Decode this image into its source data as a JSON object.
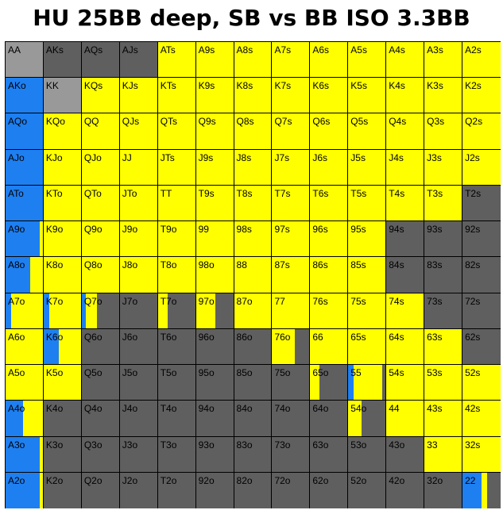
{
  "title": "HU 25BB deep, SB vs BB ISO 3.3BB",
  "colors": {
    "raise": "#ffff00",
    "jam": "#1e7ff0",
    "fold": "#5f5f5f",
    "pair_limp": "#999999",
    "line": "#000000",
    "text": "#000000"
  },
  "grid": [
    [
      "AA",
      "AKs",
      "AQs",
      "AJs",
      "ATs",
      "A9s",
      "A8s",
      "A7s",
      "A6s",
      "A5s",
      "A4s",
      "A3s",
      "A2s"
    ],
    [
      "AKo",
      "KK",
      "KQs",
      "KJs",
      "KTs",
      "K9s",
      "K8s",
      "K7s",
      "K6s",
      "K5s",
      "K4s",
      "K3s",
      "K2s"
    ],
    [
      "AQo",
      "KQo",
      "QQ",
      "QJs",
      "QTs",
      "Q9s",
      "Q8s",
      "Q7s",
      "Q6s",
      "Q5s",
      "Q4s",
      "Q3s",
      "Q2s"
    ],
    [
      "AJo",
      "KJo",
      "QJo",
      "JJ",
      "JTs",
      "J9s",
      "J8s",
      "J7s",
      "J6s",
      "J5s",
      "J4s",
      "J3s",
      "J2s"
    ],
    [
      "ATo",
      "KTo",
      "QTo",
      "JTo",
      "TT",
      "T9s",
      "T8s",
      "T7s",
      "T6s",
      "T5s",
      "T4s",
      "T3s",
      "T2s"
    ],
    [
      "A9o",
      "K9o",
      "Q9o",
      "J9o",
      "T9o",
      "99",
      "98s",
      "97s",
      "96s",
      "95s",
      "94s",
      "93s",
      "92s"
    ],
    [
      "A8o",
      "K8o",
      "Q8o",
      "J8o",
      "T8o",
      "98o",
      "88",
      "87s",
      "86s",
      "85s",
      "84s",
      "83s",
      "82s"
    ],
    [
      "A7o",
      "K7o",
      "Q7o",
      "J7o",
      "T7o",
      "97o",
      "87o",
      "77",
      "76s",
      "75s",
      "74s",
      "73s",
      "72s"
    ],
    [
      "A6o",
      "K6o",
      "Q6o",
      "J6o",
      "T6o",
      "96o",
      "86o",
      "76o",
      "66",
      "65s",
      "64s",
      "63s",
      "62s"
    ],
    [
      "A5o",
      "K5o",
      "Q5o",
      "J5o",
      "T5o",
      "95o",
      "85o",
      "75o",
      "65o",
      "55",
      "54s",
      "53s",
      "52s"
    ],
    [
      "A4o",
      "K4o",
      "Q4o",
      "J4o",
      "T4o",
      "94o",
      "84o",
      "74o",
      "64o",
      "54o",
      "44",
      "43s",
      "42s"
    ],
    [
      "A3o",
      "K3o",
      "Q3o",
      "J3o",
      "T3o",
      "93o",
      "83o",
      "73o",
      "63o",
      "53o",
      "43o",
      "33",
      "32s"
    ],
    [
      "A2o",
      "K2o",
      "Q2o",
      "J2o",
      "T2o",
      "92o",
      "82o",
      "72o",
      "62o",
      "52o",
      "42o",
      "32o",
      "22"
    ]
  ],
  "frequencies": [
    [
      {
        "pair_limp": 1.0
      },
      {
        "fold": 1.0
      },
      {
        "fold": 1.0
      },
      {
        "fold": 1.0
      },
      {
        "raise": 1.0
      },
      {
        "raise": 1.0
      },
      {
        "raise": 1.0
      },
      {
        "raise": 1.0
      },
      {
        "raise": 1.0
      },
      {
        "raise": 1.0
      },
      {
        "raise": 1.0
      },
      {
        "raise": 1.0
      },
      {
        "raise": 1.0
      }
    ],
    [
      {
        "jam": 1.0
      },
      {
        "pair_limp": 1.0
      },
      {
        "raise": 1.0
      },
      {
        "raise": 1.0
      },
      {
        "raise": 1.0
      },
      {
        "raise": 1.0
      },
      {
        "raise": 1.0
      },
      {
        "raise": 1.0
      },
      {
        "raise": 1.0
      },
      {
        "raise": 1.0
      },
      {
        "raise": 1.0
      },
      {
        "raise": 1.0
      },
      {
        "raise": 1.0
      }
    ],
    [
      {
        "jam": 1.0
      },
      {
        "raise": 1.0
      },
      {
        "raise": 1.0
      },
      {
        "raise": 1.0
      },
      {
        "raise": 1.0
      },
      {
        "raise": 1.0
      },
      {
        "raise": 1.0
      },
      {
        "raise": 1.0
      },
      {
        "raise": 1.0
      },
      {
        "raise": 1.0
      },
      {
        "raise": 1.0
      },
      {
        "raise": 1.0
      },
      {
        "raise": 1.0
      }
    ],
    [
      {
        "jam": 1.0
      },
      {
        "raise": 1.0
      },
      {
        "raise": 1.0
      },
      {
        "raise": 1.0
      },
      {
        "raise": 1.0
      },
      {
        "raise": 1.0
      },
      {
        "raise": 1.0
      },
      {
        "raise": 1.0
      },
      {
        "raise": 1.0
      },
      {
        "raise": 1.0
      },
      {
        "raise": 1.0
      },
      {
        "raise": 1.0
      },
      {
        "raise": 1.0
      }
    ],
    [
      {
        "jam": 1.0
      },
      {
        "raise": 1.0
      },
      {
        "raise": 1.0
      },
      {
        "raise": 1.0
      },
      {
        "raise": 1.0
      },
      {
        "raise": 1.0
      },
      {
        "raise": 1.0
      },
      {
        "raise": 1.0
      },
      {
        "raise": 1.0
      },
      {
        "raise": 1.0
      },
      {
        "raise": 1.0
      },
      {
        "raise": 1.0
      },
      {
        "fold": 1.0
      }
    ],
    [
      {
        "raise": 0.1,
        "jam": 0.9
      },
      {
        "raise": 1.0
      },
      {
        "raise": 1.0
      },
      {
        "raise": 1.0
      },
      {
        "raise": 1.0
      },
      {
        "raise": 1.0
      },
      {
        "raise": 1.0
      },
      {
        "raise": 1.0
      },
      {
        "raise": 1.0
      },
      {
        "raise": 1.0
      },
      {
        "fold": 1.0
      },
      {
        "fold": 1.0
      },
      {
        "fold": 1.0
      }
    ],
    [
      {
        "raise": 0.35,
        "jam": 0.65
      },
      {
        "raise": 1.0
      },
      {
        "raise": 1.0
      },
      {
        "raise": 1.0
      },
      {
        "raise": 1.0
      },
      {
        "raise": 1.0
      },
      {
        "raise": 1.0
      },
      {
        "raise": 1.0
      },
      {
        "raise": 1.0
      },
      {
        "raise": 1.0
      },
      {
        "fold": 1.0
      },
      {
        "fold": 1.0
      },
      {
        "fold": 1.0
      }
    ],
    [
      {
        "raise": 0.85,
        "jam": 0.15
      },
      {
        "raise": 0.85,
        "jam": 0.15
      },
      {
        "jam": 0.1,
        "raise": 0.3,
        "fold": 0.6
      },
      {
        "fold": 1.0
      },
      {
        "raise": 0.25,
        "fold": 0.75
      },
      {
        "raise": 0.5,
        "fold": 0.5
      },
      {
        "raise": 1.0
      },
      {
        "raise": 1.0
      },
      {
        "raise": 1.0
      },
      {
        "raise": 1.0
      },
      {
        "raise": 1.0
      },
      {
        "fold": 1.0
      },
      {
        "fold": 1.0
      }
    ],
    [
      {
        "raise": 1.0
      },
      {
        "raise": 0.6,
        "jam": 0.4
      },
      {
        "fold": 1.0
      },
      {
        "fold": 1.0
      },
      {
        "fold": 1.0
      },
      {
        "fold": 1.0
      },
      {
        "fold": 1.0
      },
      {
        "raise": 0.6,
        "fold": 0.4
      },
      {
        "raise": 1.0
      },
      {
        "raise": 1.0
      },
      {
        "raise": 1.0
      },
      {
        "raise": 1.0
      },
      {
        "fold": 1.0
      }
    ],
    [
      {
        "raise": 1.0
      },
      {
        "raise": 1.0
      },
      {
        "fold": 1.0
      },
      {
        "fold": 1.0
      },
      {
        "fold": 1.0
      },
      {
        "fold": 1.0
      },
      {
        "fold": 1.0
      },
      {
        "fold": 1.0
      },
      {
        "raise": 0.25,
        "fold": 0.75
      },
      {
        "raise": 0.75,
        "jam": 0.15,
        "fold": 0.1
      },
      {
        "raise": 1.0
      },
      {
        "raise": 1.0
      },
      {
        "raise": 1.0
      }
    ],
    [
      {
        "raise": 0.55,
        "jam": 0.45
      },
      {
        "fold": 1.0
      },
      {
        "fold": 1.0
      },
      {
        "fold": 1.0
      },
      {
        "fold": 1.0
      },
      {
        "fold": 1.0
      },
      {
        "fold": 1.0
      },
      {
        "fold": 1.0
      },
      {
        "fold": 1.0
      },
      {
        "raise": 0.35,
        "fold": 0.65
      },
      {
        "raise": 1.0
      },
      {
        "raise": 1.0
      },
      {
        "raise": 1.0
      }
    ],
    [
      {
        "raise": 0.1,
        "jam": 0.9
      },
      {
        "fold": 1.0
      },
      {
        "fold": 1.0
      },
      {
        "fold": 1.0
      },
      {
        "fold": 1.0
      },
      {
        "fold": 1.0
      },
      {
        "fold": 1.0
      },
      {
        "fold": 1.0
      },
      {
        "fold": 1.0
      },
      {
        "fold": 1.0
      },
      {
        "fold": 1.0
      },
      {
        "raise": 1.0
      },
      {
        "raise": 1.0
      }
    ],
    [
      {
        "raise": 0.1,
        "jam": 0.9
      },
      {
        "fold": 1.0
      },
      {
        "fold": 1.0
      },
      {
        "fold": 1.0
      },
      {
        "fold": 1.0
      },
      {
        "fold": 1.0
      },
      {
        "fold": 1.0
      },
      {
        "fold": 1.0
      },
      {
        "fold": 1.0
      },
      {
        "fold": 1.0
      },
      {
        "fold": 1.0
      },
      {
        "fold": 1.0
      },
      {
        "raise": 0.15,
        "jam": 0.5,
        "fold": 0.35
      }
    ]
  ]
}
